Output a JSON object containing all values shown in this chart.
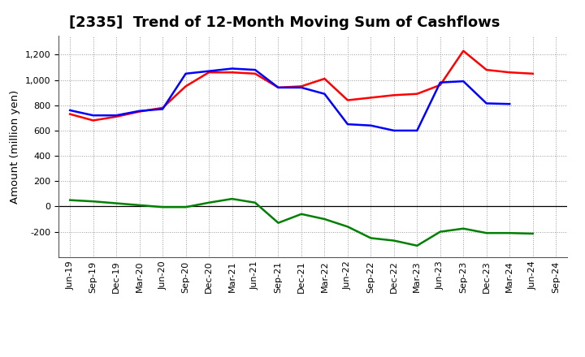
{
  "title": "[2335]  Trend of 12-Month Moving Sum of Cashflows",
  "ylabel": "Amount (million yen)",
  "x_labels": [
    "Jun-19",
    "Sep-19",
    "Dec-19",
    "Mar-20",
    "Jun-20",
    "Sep-20",
    "Dec-20",
    "Mar-21",
    "Jun-21",
    "Sep-21",
    "Dec-21",
    "Mar-22",
    "Jun-22",
    "Sep-22",
    "Dec-22",
    "Mar-23",
    "Jun-23",
    "Sep-23",
    "Dec-23",
    "Mar-24",
    "Jun-24",
    "Sep-24"
  ],
  "operating": [
    730,
    680,
    710,
    750,
    780,
    950,
    1060,
    1060,
    1050,
    940,
    950,
    1010,
    840,
    860,
    880,
    890,
    960,
    1230,
    1080,
    1060,
    1050,
    null
  ],
  "investing": [
    50,
    40,
    25,
    10,
    -5,
    -5,
    30,
    60,
    30,
    -130,
    -60,
    -100,
    -160,
    -250,
    -270,
    -310,
    -200,
    -175,
    -210,
    -210,
    -215,
    null
  ],
  "free": [
    760,
    720,
    720,
    755,
    770,
    1050,
    1070,
    1090,
    1080,
    940,
    940,
    890,
    650,
    640,
    600,
    600,
    980,
    990,
    815,
    810,
    null,
    null
  ],
  "ylim": [
    -400,
    1350
  ],
  "yticks": [
    -200,
    0,
    200,
    400,
    600,
    800,
    1000,
    1200
  ],
  "operating_color": "#ff0000",
  "investing_color": "#008000",
  "free_color": "#0000ff",
  "bg_color": "#ffffff",
  "grid_color": "#999999",
  "linewidth": 1.8,
  "title_fontsize": 13,
  "label_fontsize": 9.5,
  "tick_fontsize": 8.0
}
